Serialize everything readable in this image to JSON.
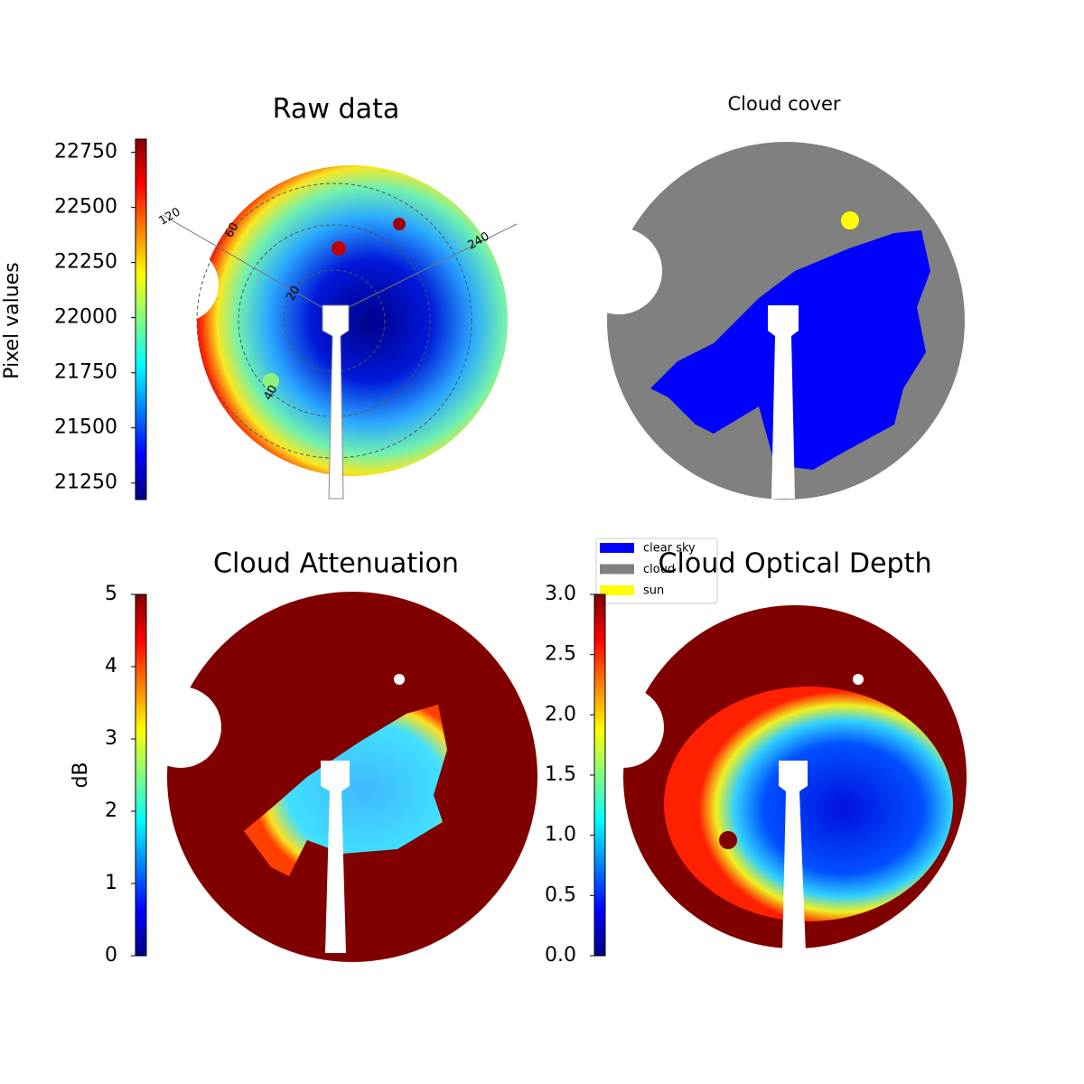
{
  "chart_data": [
    {
      "type": "image",
      "title": "Raw data",
      "colorbar_label": "Pixel values",
      "ylim": [
        21175,
        22810
      ],
      "yticks": [
        21250,
        21500,
        21750,
        22000,
        22250,
        22500,
        22750
      ],
      "annotations": [
        "120",
        "60",
        "240",
        "20",
        "40"
      ]
    },
    {
      "type": "image",
      "title": "Cloud cover",
      "legend": [
        {
          "name": "clear sky",
          "color": "#0000ff"
        },
        {
          "name": "cloud",
          "color": "#808080"
        },
        {
          "name": "sun",
          "color": "#ffff00"
        }
      ]
    },
    {
      "type": "image",
      "title": "Cloud Attenuation",
      "colorbar_label": "dB",
      "ylim": [
        0,
        5
      ],
      "yticks": [
        0,
        1,
        2,
        3,
        4,
        5
      ]
    },
    {
      "type": "image",
      "title": "Cloud Optical Depth",
      "ylim": [
        0,
        3
      ],
      "yticks": [
        {
          "value": 0,
          "label": "0.0"
        },
        0.5,
        {
          "value": 1,
          "label": "1.0"
        },
        1.5,
        {
          "value": 2,
          "label": "2.0"
        },
        2.5,
        {
          "value": 3,
          "label": "3.0"
        }
      ]
    }
  ]
}
